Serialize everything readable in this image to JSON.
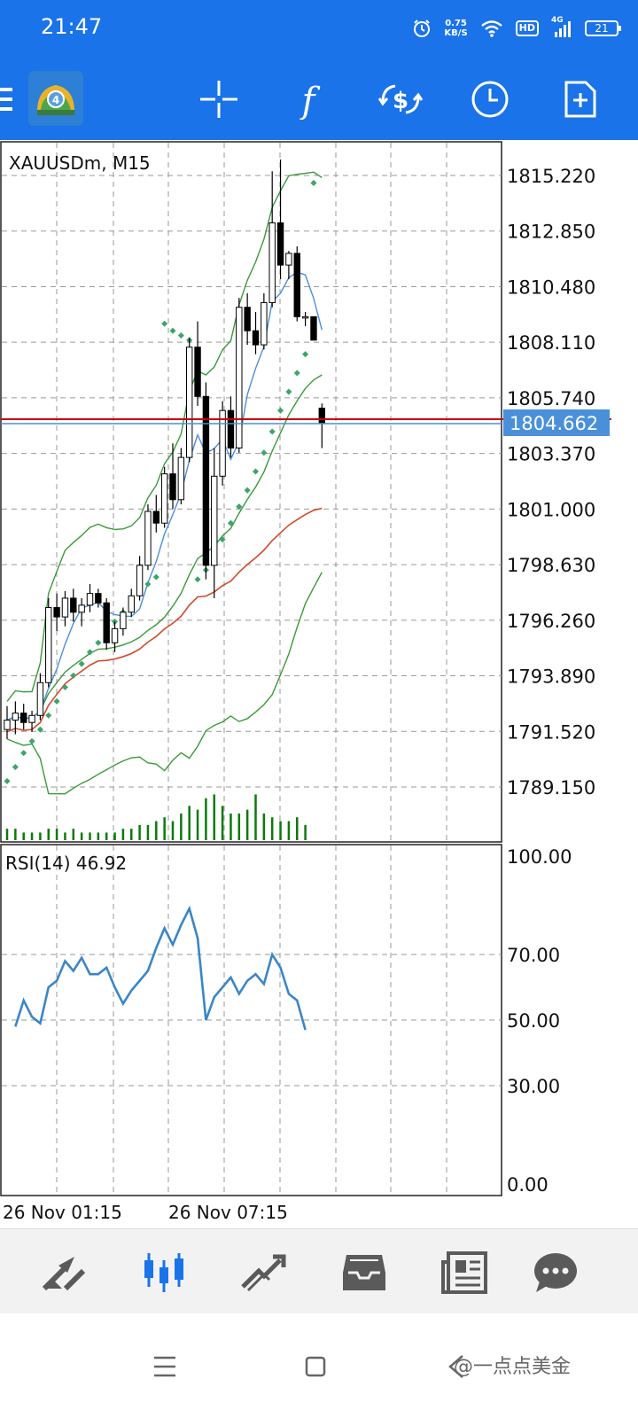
{
  "status_bar": {
    "time": "21:47",
    "net_speed_value": "0.75",
    "net_speed_unit": "KB/S",
    "hd_label": "HD",
    "signal_label": "4G",
    "battery_level": "21"
  },
  "toolbar": {
    "icons": [
      "menu-icon",
      "metatrader-logo-icon",
      "crosshair-icon",
      "indicators-icon",
      "symbol-change-icon",
      "timeframe-icon",
      "new-order-icon"
    ]
  },
  "chart": {
    "symbol_label": "XAUUSDm, M15",
    "current_price": "1804.662",
    "colors": {
      "bollinger": "#3a9a3a",
      "moving_average": "#4a90d9",
      "slow_ma": "#d24a2a",
      "sar": "#3da56a",
      "volume": "#0b7a0b",
      "rsi": "#3a86c8",
      "price_line": "#cc0000",
      "bid_line": "#4a90d9",
      "price_tag": "#4a90d9"
    },
    "price_ticks": [
      "1815.220",
      "1812.850",
      "1810.480",
      "1808.110",
      "1805.740",
      "1803.370",
      "1801.000",
      "1798.630",
      "1796.260",
      "1793.890",
      "1791.520",
      "1789.150"
    ],
    "time_labels": [
      "26 Nov 01:15",
      "26 Nov 07:15"
    ]
  },
  "chart_data": {
    "type": "candlestick",
    "symbol": "XAUUSDm",
    "timeframe": "M15",
    "current_price": 1804.662,
    "ylim": [
      1788.0,
      1816.0
    ],
    "candles": [
      {
        "o": 1791.6,
        "h": 1792.6,
        "l": 1791.2,
        "c": 1792.0
      },
      {
        "o": 1792.0,
        "h": 1792.8,
        "l": 1791.4,
        "c": 1792.3
      },
      {
        "o": 1792.3,
        "h": 1792.7,
        "l": 1791.6,
        "c": 1791.9
      },
      {
        "o": 1791.9,
        "h": 1792.4,
        "l": 1791.5,
        "c": 1792.2
      },
      {
        "o": 1792.2,
        "h": 1794.0,
        "l": 1792.0,
        "c": 1793.6
      },
      {
        "o": 1793.6,
        "h": 1797.2,
        "l": 1793.4,
        "c": 1796.8
      },
      {
        "o": 1796.8,
        "h": 1797.4,
        "l": 1795.8,
        "c": 1796.4
      },
      {
        "o": 1796.4,
        "h": 1797.5,
        "l": 1796.0,
        "c": 1797.2
      },
      {
        "o": 1797.2,
        "h": 1797.6,
        "l": 1796.2,
        "c": 1796.6
      },
      {
        "o": 1796.6,
        "h": 1797.2,
        "l": 1796.0,
        "c": 1796.9
      },
      {
        "o": 1796.9,
        "h": 1797.8,
        "l": 1796.6,
        "c": 1797.4
      },
      {
        "o": 1797.4,
        "h": 1797.6,
        "l": 1796.8,
        "c": 1797.0
      },
      {
        "o": 1797.0,
        "h": 1797.2,
        "l": 1795.0,
        "c": 1795.3
      },
      {
        "o": 1795.3,
        "h": 1796.2,
        "l": 1794.9,
        "c": 1795.9
      },
      {
        "o": 1795.9,
        "h": 1796.8,
        "l": 1795.6,
        "c": 1796.6
      },
      {
        "o": 1796.6,
        "h": 1797.6,
        "l": 1796.4,
        "c": 1797.3
      },
      {
        "o": 1797.3,
        "h": 1799.0,
        "l": 1797.1,
        "c": 1798.6
      },
      {
        "o": 1798.6,
        "h": 1801.2,
        "l": 1798.4,
        "c": 1800.9
      },
      {
        "o": 1800.9,
        "h": 1801.6,
        "l": 1800.0,
        "c": 1800.4
      },
      {
        "o": 1800.4,
        "h": 1802.8,
        "l": 1800.2,
        "c": 1802.5
      },
      {
        "o": 1802.5,
        "h": 1803.8,
        "l": 1801.0,
        "c": 1801.4
      },
      {
        "o": 1801.4,
        "h": 1803.6,
        "l": 1801.2,
        "c": 1803.2
      },
      {
        "o": 1803.2,
        "h": 1808.3,
        "l": 1803.0,
        "c": 1807.9
      },
      {
        "o": 1807.9,
        "h": 1809.0,
        "l": 1805.4,
        "c": 1805.8
      },
      {
        "o": 1805.8,
        "h": 1806.4,
        "l": 1798.0,
        "c": 1798.6
      },
      {
        "o": 1798.6,
        "h": 1803.6,
        "l": 1797.2,
        "c": 1802.4
      },
      {
        "o": 1802.4,
        "h": 1805.6,
        "l": 1802.0,
        "c": 1805.2
      },
      {
        "o": 1805.2,
        "h": 1805.8,
        "l": 1803.2,
        "c": 1803.6
      },
      {
        "o": 1803.6,
        "h": 1810.0,
        "l": 1803.4,
        "c": 1809.6
      },
      {
        "o": 1809.6,
        "h": 1810.2,
        "l": 1808.0,
        "c": 1808.6
      },
      {
        "o": 1808.6,
        "h": 1809.4,
        "l": 1807.6,
        "c": 1808.0
      },
      {
        "o": 1808.0,
        "h": 1810.2,
        "l": 1807.8,
        "c": 1809.8
      },
      {
        "o": 1809.8,
        "h": 1815.4,
        "l": 1809.6,
        "c": 1813.2
      },
      {
        "o": 1813.2,
        "h": 1815.9,
        "l": 1810.8,
        "c": 1811.4
      },
      {
        "o": 1811.4,
        "h": 1812.0,
        "l": 1810.8,
        "c": 1811.9
      },
      {
        "o": 1811.9,
        "h": 1812.2,
        "l": 1809.0,
        "c": 1809.2
      },
      {
        "o": 1809.2,
        "h": 1809.4,
        "l": 1808.8,
        "c": 1809.2
      },
      {
        "o": 1809.2,
        "h": 1809.2,
        "l": 1808.2,
        "c": 1808.2
      },
      {
        "o": 1805.3,
        "h": 1805.5,
        "l": 1803.6,
        "c": 1804.662
      }
    ],
    "volume": [
      3,
      3,
      2,
      2,
      2,
      3,
      3,
      2,
      3,
      2,
      2,
      2,
      2,
      2,
      3,
      3,
      4,
      4,
      5,
      6,
      5,
      7,
      9,
      8,
      11,
      12,
      9,
      7,
      7,
      8,
      12,
      7,
      6,
      5,
      5,
      6,
      4,
      0,
      0
    ],
    "sar": [
      1789.4,
      1790.0,
      1790.6,
      1791.1,
      1791.6,
      1792.2,
      1792.8,
      1793.4,
      1793.9,
      1794.4,
      1794.9,
      1795.3,
      1795.8,
      1796.2,
      1796.6,
      1797.0,
      1797.4,
      1797.8,
      1798.1,
      1808.9,
      1808.6,
      1808.4,
      1808.2,
      1798.0,
      1798.4,
      1799.0,
      1799.7,
      1800.4,
      1801.1,
      1801.8,
      1802.6,
      1803.4,
      1804.3,
      1805.2,
      1806.0,
      1806.8,
      1807.6,
      1814.9
    ],
    "rsi": {
      "period": 14,
      "value": 46.92,
      "levels": [
        30.0,
        50.0,
        70.0
      ],
      "ylim": [
        0,
        100
      ],
      "values": [
        48,
        56,
        51,
        49,
        60,
        62,
        68,
        65,
        69,
        64,
        64,
        66,
        60,
        55,
        59,
        62,
        65,
        72,
        78,
        73,
        79,
        84,
        75,
        50,
        57,
        60,
        63,
        58,
        62,
        64,
        61,
        70,
        66,
        58,
        56,
        47
      ]
    }
  },
  "rsi_panel": {
    "label": "RSI(14) 46.92",
    "ticks": [
      "100.00",
      "70.00",
      "50.00",
      "30.00",
      "0.00"
    ]
  },
  "bottom_nav": {
    "items": [
      "quotes-icon",
      "chart-icon",
      "trade-icon",
      "history-icon",
      "news-icon",
      "messages-icon"
    ],
    "active": "chart-icon"
  },
  "system_nav": {
    "watermark": "@一点点美金"
  }
}
